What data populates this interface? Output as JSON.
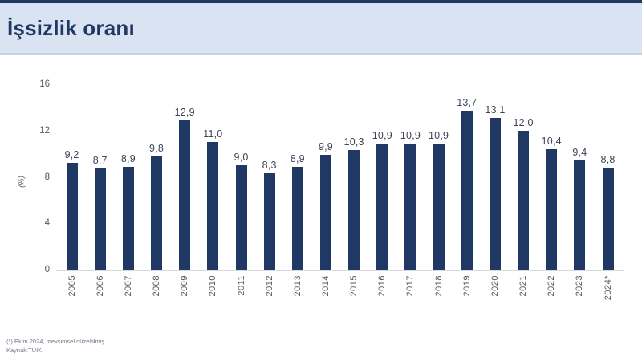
{
  "header": {
    "title": "İşsizlik oranı"
  },
  "chart_data": {
    "type": "bar",
    "title": "İşsizlik oranı",
    "xlabel": "",
    "ylabel": "(%)",
    "ylim": [
      0,
      16
    ],
    "yticks": [
      0,
      4,
      8,
      12,
      16
    ],
    "grid": false,
    "legend": null,
    "bar_color": "#1f3864",
    "categories": [
      "2005",
      "2006",
      "2007",
      "2008",
      "2009",
      "2010",
      "2011",
      "2012",
      "2013",
      "2014",
      "2015",
      "2016",
      "2017",
      "2018",
      "2019",
      "2020",
      "2021",
      "2022",
      "2023",
      "2024*"
    ],
    "values": [
      9.2,
      8.7,
      8.9,
      9.8,
      12.9,
      11.0,
      9.0,
      8.3,
      8.9,
      9.9,
      10.3,
      10.9,
      10.9,
      10.9,
      13.7,
      13.1,
      12.0,
      10.4,
      9.4,
      8.8
    ],
    "value_labels": [
      "9,2",
      "8,7",
      "8,9",
      "9,8",
      "12,9",
      "11,0",
      "9,0",
      "8,3",
      "8,9",
      "9,9",
      "10,3",
      "10,9",
      "10,9",
      "10,9",
      "13,7",
      "13,1",
      "12,0",
      "10,4",
      "9,4",
      "8,8"
    ]
  },
  "footer": {
    "note": "(*) Ekim 2024, mevsimsel düzeltilmiş",
    "source": "Kaynak:TÜİK"
  },
  "colors": {
    "accent": "#1f3864",
    "header_bg": "#dae3f1",
    "axis_line": "#d9d9d9",
    "tick_text": "#595959",
    "value_text": "#3d4455"
  }
}
